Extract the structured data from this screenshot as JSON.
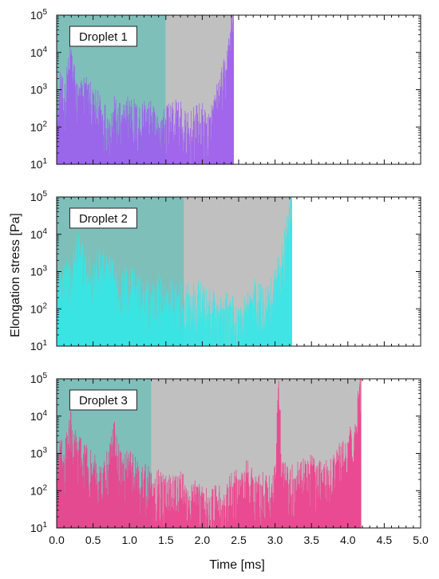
{
  "chart_data": {
    "type": "line",
    "xlabel": "Time [ms]",
    "ylabel": "Elongation stress [Pa]",
    "xlim": [
      0,
      5.0
    ],
    "ylim": [
      10,
      100000
    ],
    "yscale": "log",
    "x_ticks": [
      "0.0",
      "0.5",
      "1.0",
      "1.5",
      "2.0",
      "2.5",
      "3.0",
      "3.5",
      "4.0",
      "4.5",
      "5.0"
    ],
    "y_tick_exponents": [
      "1",
      "2",
      "3",
      "4",
      "5"
    ],
    "y_tick_base": "10",
    "region_colors": {
      "first": "#7fbfb9",
      "second": "#c0c0c0"
    },
    "panels": [
      {
        "label": "Droplet 1",
        "color": "#9d5cf0",
        "region_split": 1.5,
        "end": 2.43,
        "profile": [
          [
            0.0,
            120
          ],
          [
            0.05,
            1500
          ],
          [
            0.1,
            600
          ],
          [
            0.15,
            2500
          ],
          [
            0.2,
            12000
          ],
          [
            0.25,
            1800
          ],
          [
            0.3,
            700
          ],
          [
            0.4,
            1500
          ],
          [
            0.5,
            400
          ],
          [
            0.6,
            500
          ],
          [
            0.7,
            150
          ],
          [
            0.8,
            300
          ],
          [
            0.9,
            150
          ],
          [
            1.0,
            500
          ],
          [
            1.1,
            200
          ],
          [
            1.2,
            300
          ],
          [
            1.3,
            200
          ],
          [
            1.4,
            120
          ],
          [
            1.5,
            150
          ],
          [
            1.6,
            300
          ],
          [
            1.7,
            200
          ],
          [
            1.8,
            100
          ],
          [
            1.9,
            150
          ],
          [
            2.0,
            200
          ],
          [
            2.05,
            120
          ],
          [
            2.1,
            150
          ],
          [
            2.15,
            300
          ],
          [
            2.2,
            600
          ],
          [
            2.25,
            1200
          ],
          [
            2.3,
            3000
          ],
          [
            2.35,
            8000
          ],
          [
            2.4,
            90000
          ],
          [
            2.43,
            100000
          ]
        ]
      },
      {
        "label": "Droplet 2",
        "color": "#33e8e8",
        "region_split": 1.75,
        "end": 3.23,
        "profile": [
          [
            0.0,
            300
          ],
          [
            0.1,
            1500
          ],
          [
            0.2,
            800
          ],
          [
            0.3,
            7000
          ],
          [
            0.4,
            1500
          ],
          [
            0.5,
            800
          ],
          [
            0.6,
            2500
          ],
          [
            0.7,
            1500
          ],
          [
            0.8,
            600
          ],
          [
            0.9,
            500
          ],
          [
            1.0,
            700
          ],
          [
            1.1,
            400
          ],
          [
            1.2,
            300
          ],
          [
            1.3,
            250
          ],
          [
            1.4,
            400
          ],
          [
            1.5,
            250
          ],
          [
            1.6,
            300
          ],
          [
            1.7,
            250
          ],
          [
            1.8,
            200
          ],
          [
            1.9,
            300
          ],
          [
            2.0,
            200
          ],
          [
            2.1,
            150
          ],
          [
            2.2,
            120
          ],
          [
            2.3,
            100
          ],
          [
            2.4,
            120
          ],
          [
            2.5,
            60
          ],
          [
            2.6,
            150
          ],
          [
            2.7,
            300
          ],
          [
            2.8,
            200
          ],
          [
            2.9,
            250
          ],
          [
            3.0,
            600
          ],
          [
            3.05,
            1200
          ],
          [
            3.1,
            3000
          ],
          [
            3.15,
            8000
          ],
          [
            3.2,
            40000
          ],
          [
            3.23,
            100000
          ]
        ]
      },
      {
        "label": "Droplet 3",
        "color": "#ee3d8c",
        "region_split": 1.3,
        "end": 4.18,
        "profile": [
          [
            0.0,
            300
          ],
          [
            0.05,
            1500
          ],
          [
            0.1,
            600
          ],
          [
            0.15,
            3000
          ],
          [
            0.2,
            6000
          ],
          [
            0.25,
            2000
          ],
          [
            0.3,
            1200
          ],
          [
            0.4,
            800
          ],
          [
            0.5,
            400
          ],
          [
            0.6,
            300
          ],
          [
            0.7,
            500
          ],
          [
            0.8,
            3500
          ],
          [
            0.85,
            800
          ],
          [
            0.9,
            500
          ],
          [
            1.0,
            600
          ],
          [
            1.1,
            400
          ],
          [
            1.2,
            200
          ],
          [
            1.3,
            300
          ],
          [
            1.4,
            150
          ],
          [
            1.5,
            120
          ],
          [
            1.6,
            250
          ],
          [
            1.7,
            150
          ],
          [
            1.8,
            100
          ],
          [
            1.9,
            80
          ],
          [
            2.0,
            60
          ],
          [
            2.1,
            50
          ],
          [
            2.2,
            70
          ],
          [
            2.3,
            60
          ],
          [
            2.4,
            120
          ],
          [
            2.5,
            200
          ],
          [
            2.6,
            300
          ],
          [
            2.7,
            200
          ],
          [
            2.8,
            150
          ],
          [
            2.9,
            120
          ],
          [
            3.0,
            200
          ],
          [
            3.05,
            90000
          ],
          [
            3.1,
            300
          ],
          [
            3.2,
            200
          ],
          [
            3.3,
            250
          ],
          [
            3.4,
            300
          ],
          [
            3.5,
            500
          ],
          [
            3.6,
            400
          ],
          [
            3.7,
            300
          ],
          [
            3.8,
            400
          ],
          [
            3.9,
            900
          ],
          [
            4.0,
            1500
          ],
          [
            4.05,
            2500
          ],
          [
            4.1,
            6000
          ],
          [
            4.15,
            30000
          ],
          [
            4.18,
            100000
          ]
        ]
      }
    ]
  }
}
